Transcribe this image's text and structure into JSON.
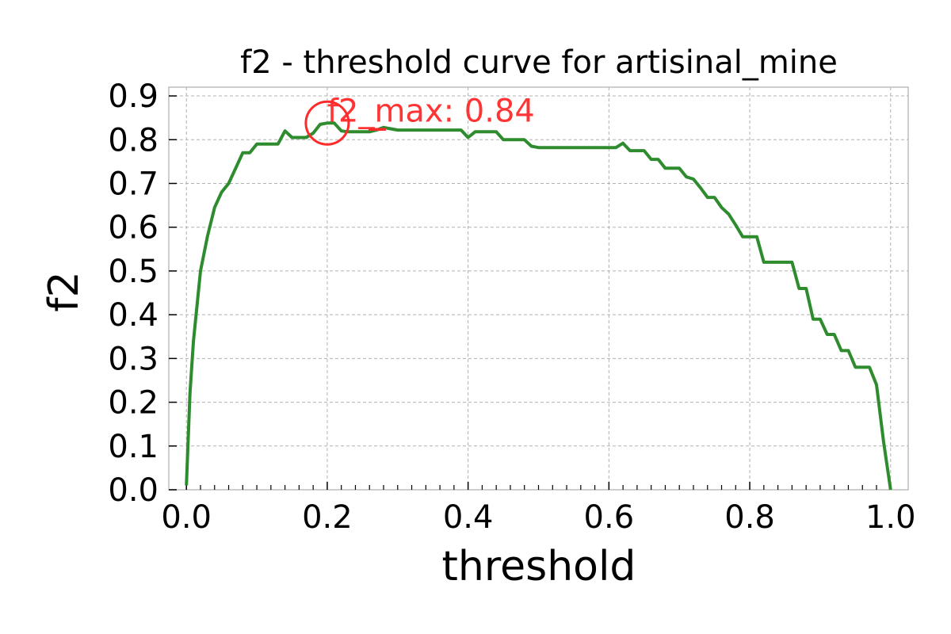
{
  "chart_data": {
    "type": "line",
    "title": "f2 - threshold curve for artisinal_mine",
    "xlabel": "threshold",
    "ylabel": "f2",
    "xlim": [
      -0.025,
      1.025
    ],
    "ylim": [
      0.0,
      0.92
    ],
    "x_ticks": [
      0.0,
      0.2,
      0.4,
      0.6,
      0.8,
      1.0
    ],
    "x_tick_labels": [
      "0.0",
      "0.2",
      "0.4",
      "0.6",
      "0.8",
      "1.0"
    ],
    "y_ticks": [
      0.0,
      0.1,
      0.2,
      0.3,
      0.4,
      0.5,
      0.6,
      0.7,
      0.8,
      0.9
    ],
    "y_tick_labels": [
      "0.0",
      "0.1",
      "0.2",
      "0.3",
      "0.4",
      "0.5",
      "0.6",
      "0.7",
      "0.8",
      "0.9"
    ],
    "x_minor_step": 0.02,
    "grid": true,
    "series": [
      {
        "color": "#2e8b2e",
        "x": [
          0.0,
          0.005,
          0.01,
          0.02,
          0.03,
          0.04,
          0.05,
          0.06,
          0.07,
          0.08,
          0.09,
          0.1,
          0.11,
          0.12,
          0.13,
          0.14,
          0.15,
          0.16,
          0.17,
          0.18,
          0.19,
          0.2,
          0.21,
          0.22,
          0.23,
          0.24,
          0.25,
          0.26,
          0.27,
          0.28,
          0.29,
          0.3,
          0.31,
          0.32,
          0.33,
          0.34,
          0.35,
          0.36,
          0.37,
          0.38,
          0.39,
          0.4,
          0.41,
          0.42,
          0.43,
          0.44,
          0.45,
          0.46,
          0.47,
          0.48,
          0.49,
          0.5,
          0.51,
          0.52,
          0.53,
          0.54,
          0.55,
          0.56,
          0.57,
          0.58,
          0.59,
          0.6,
          0.61,
          0.62,
          0.63,
          0.64,
          0.65,
          0.66,
          0.67,
          0.68,
          0.69,
          0.7,
          0.71,
          0.72,
          0.73,
          0.74,
          0.75,
          0.76,
          0.77,
          0.78,
          0.79,
          0.8,
          0.81,
          0.82,
          0.83,
          0.84,
          0.85,
          0.86,
          0.87,
          0.88,
          0.89,
          0.9,
          0.91,
          0.92,
          0.93,
          0.94,
          0.95,
          0.96,
          0.97,
          0.98,
          0.99,
          1.0
        ],
        "y": [
          0.01,
          0.22,
          0.34,
          0.5,
          0.58,
          0.645,
          0.68,
          0.7,
          0.735,
          0.77,
          0.77,
          0.79,
          0.79,
          0.79,
          0.79,
          0.82,
          0.805,
          0.805,
          0.805,
          0.815,
          0.835,
          0.838,
          0.838,
          0.82,
          0.818,
          0.818,
          0.818,
          0.818,
          0.822,
          0.828,
          0.825,
          0.822,
          0.822,
          0.822,
          0.822,
          0.822,
          0.822,
          0.822,
          0.822,
          0.822,
          0.822,
          0.805,
          0.818,
          0.818,
          0.818,
          0.818,
          0.8,
          0.8,
          0.8,
          0.8,
          0.785,
          0.782,
          0.782,
          0.782,
          0.782,
          0.782,
          0.782,
          0.782,
          0.782,
          0.782,
          0.782,
          0.782,
          0.782,
          0.792,
          0.775,
          0.775,
          0.775,
          0.755,
          0.755,
          0.735,
          0.735,
          0.735,
          0.715,
          0.71,
          0.69,
          0.668,
          0.668,
          0.645,
          0.63,
          0.605,
          0.578,
          0.578,
          0.578,
          0.52,
          0.52,
          0.52,
          0.52,
          0.52,
          0.46,
          0.46,
          0.39,
          0.39,
          0.355,
          0.355,
          0.318,
          0.318,
          0.28,
          0.28,
          0.28,
          0.24,
          0.11,
          0.0
        ]
      }
    ],
    "annotation": {
      "text": "f2_max: 0.84",
      "x": 0.2,
      "y": 0.838,
      "color": "#ff2a2a"
    }
  }
}
